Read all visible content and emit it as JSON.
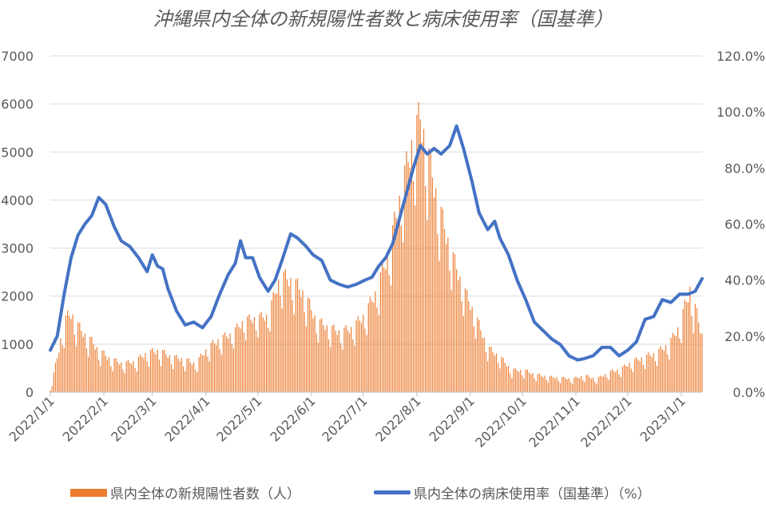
{
  "chart_data": {
    "type": "bar+line",
    "title": "沖縄県内全体の新規陽性者数と病床使用率（国基準）",
    "x_tick_labels": [
      "2022/1/1",
      "2022/2/1",
      "2022/3/1",
      "2022/4/1",
      "2022/5/1",
      "2022/6/1",
      "2022/7/1",
      "2022/8/1",
      "2022/9/1",
      "2022/10/1",
      "2022/11/1",
      "2022/12/1",
      "2023/1/1"
    ],
    "x_range": [
      "2022-01-01",
      "2023-01-13"
    ],
    "y_left": {
      "ticks": [
        "0",
        "1000",
        "2000",
        "3000",
        "4000",
        "5000",
        "6000",
        "7000"
      ],
      "range": [
        0,
        7000
      ]
    },
    "y_right": {
      "ticks": [
        "0.0%",
        "20.0%",
        "40.0%",
        "60.0%",
        "80.0%",
        "100.0%",
        "120.0%"
      ],
      "range": [
        0,
        120
      ]
    },
    "grid": "horizontal",
    "legend_position": "bottom",
    "colors": {
      "bars": "#ED7D31",
      "line": "#4472C4",
      "grid": "#D9D9D9",
      "text": "#595959"
    },
    "series": [
      {
        "name": "県内全体の新規陽性者数（人）",
        "type": "bar",
        "axis": "left",
        "weekly_envelope": {
          "dates": [
            "2022-01-01",
            "2022-01-05",
            "2022-01-09",
            "2022-01-13",
            "2022-01-17",
            "2022-01-21",
            "2022-01-25",
            "2022-01-29",
            "2022-02-05",
            "2022-02-12",
            "2022-02-19",
            "2022-02-26",
            "2022-03-05",
            "2022-03-12",
            "2022-03-19",
            "2022-03-26",
            "2022-04-02",
            "2022-04-09",
            "2022-04-16",
            "2022-04-23",
            "2022-04-30",
            "2022-05-07",
            "2022-05-14",
            "2022-05-21",
            "2022-05-28",
            "2022-06-04",
            "2022-06-11",
            "2022-06-18",
            "2022-06-25",
            "2022-07-02",
            "2022-07-09",
            "2022-07-16",
            "2022-07-23",
            "2022-07-30",
            "2022-08-03",
            "2022-08-07",
            "2022-08-14",
            "2022-08-21",
            "2022-08-28",
            "2022-09-04",
            "2022-09-11",
            "2022-09-18",
            "2022-09-25",
            "2022-10-02",
            "2022-10-09",
            "2022-10-16",
            "2022-10-23",
            "2022-10-30",
            "2022-11-06",
            "2022-11-13",
            "2022-11-20",
            "2022-11-27",
            "2022-12-04",
            "2022-12-11",
            "2022-12-18",
            "2022-12-25",
            "2022-12-31",
            "2023-01-06",
            "2023-01-13"
          ],
          "peak": [
            50,
            800,
            1600,
            1800,
            1500,
            1300,
            1150,
            950,
            750,
            650,
            700,
            900,
            950,
            800,
            750,
            650,
            1000,
            1200,
            1300,
            1600,
            1650,
            1700,
            2600,
            2500,
            2200,
            1600,
            1450,
            1350,
            1450,
            1750,
            2300,
            3200,
            4500,
            5700,
            6150,
            5400,
            4100,
            3100,
            2300,
            1700,
            1000,
            800,
            500,
            500,
            400,
            350,
            330,
            300,
            380,
            300,
            450,
            530,
            700,
            800,
            900,
            1100,
            1500,
            2350,
            1300
          ],
          "trough": [
            20,
            200,
            550,
            700,
            600,
            500,
            450,
            350,
            280,
            250,
            260,
            330,
            350,
            320,
            280,
            240,
            420,
            520,
            650,
            800,
            850,
            900,
            1300,
            1200,
            1000,
            750,
            680,
            620,
            670,
            800,
            1100,
            1500,
            2200,
            2800,
            3000,
            2600,
            2000,
            1600,
            1200,
            800,
            450,
            330,
            180,
            170,
            140,
            120,
            110,
            100,
            120,
            100,
            160,
            200,
            270,
            310,
            360,
            450,
            650,
            900,
            500
          ]
        }
      },
      {
        "name": "県内全体の病床使用率（国基準）（%）",
        "type": "line",
        "axis": "right",
        "points": [
          [
            "2022-01-01",
            15
          ],
          [
            "2022-01-05",
            20
          ],
          [
            "2022-01-09",
            35
          ],
          [
            "2022-01-13",
            48
          ],
          [
            "2022-01-17",
            56
          ],
          [
            "2022-01-21",
            60
          ],
          [
            "2022-01-25",
            63
          ],
          [
            "2022-01-29",
            69.5
          ],
          [
            "2022-02-02",
            67
          ],
          [
            "2022-02-07",
            59
          ],
          [
            "2022-02-11",
            54
          ],
          [
            "2022-02-16",
            52
          ],
          [
            "2022-02-21",
            48
          ],
          [
            "2022-02-26",
            43
          ],
          [
            "2022-03-01",
            49
          ],
          [
            "2022-03-04",
            45
          ],
          [
            "2022-03-07",
            44
          ],
          [
            "2022-03-10",
            37
          ],
          [
            "2022-03-15",
            29
          ],
          [
            "2022-03-20",
            24
          ],
          [
            "2022-03-25",
            25
          ],
          [
            "2022-03-30",
            23
          ],
          [
            "2022-04-04",
            27
          ],
          [
            "2022-04-09",
            35
          ],
          [
            "2022-04-14",
            42
          ],
          [
            "2022-04-18",
            46
          ],
          [
            "2022-04-21",
            54
          ],
          [
            "2022-04-24",
            48
          ],
          [
            "2022-04-28",
            48
          ],
          [
            "2022-05-02",
            41
          ],
          [
            "2022-05-07",
            36
          ],
          [
            "2022-05-11",
            40
          ],
          [
            "2022-05-15",
            47
          ],
          [
            "2022-05-20",
            56.5
          ],
          [
            "2022-05-24",
            55
          ],
          [
            "2022-05-29",
            52
          ],
          [
            "2022-06-02",
            49
          ],
          [
            "2022-06-07",
            47
          ],
          [
            "2022-06-12",
            40
          ],
          [
            "2022-06-17",
            38.5
          ],
          [
            "2022-06-22",
            37.5
          ],
          [
            "2022-06-27",
            38.5
          ],
          [
            "2022-07-02",
            40
          ],
          [
            "2022-07-06",
            41
          ],
          [
            "2022-07-10",
            45
          ],
          [
            "2022-07-14",
            48
          ],
          [
            "2022-07-18",
            53
          ],
          [
            "2022-07-22",
            62
          ],
          [
            "2022-07-26",
            71
          ],
          [
            "2022-07-30",
            80
          ],
          [
            "2022-08-03",
            88
          ],
          [
            "2022-08-07",
            85
          ],
          [
            "2022-08-11",
            87
          ],
          [
            "2022-08-15",
            85
          ],
          [
            "2022-08-20",
            88
          ],
          [
            "2022-08-24",
            95
          ],
          [
            "2022-08-28",
            87
          ],
          [
            "2022-09-02",
            75
          ],
          [
            "2022-09-06",
            64
          ],
          [
            "2022-09-11",
            58
          ],
          [
            "2022-09-15",
            61
          ],
          [
            "2022-09-18",
            55
          ],
          [
            "2022-09-23",
            49
          ],
          [
            "2022-09-28",
            40
          ],
          [
            "2022-10-03",
            33
          ],
          [
            "2022-10-08",
            25
          ],
          [
            "2022-10-13",
            22
          ],
          [
            "2022-10-18",
            19
          ],
          [
            "2022-10-23",
            17
          ],
          [
            "2022-10-28",
            13
          ],
          [
            "2022-11-02",
            11.5
          ],
          [
            "2022-11-06",
            12
          ],
          [
            "2022-11-11",
            13
          ],
          [
            "2022-11-16",
            16
          ],
          [
            "2022-11-21",
            16
          ],
          [
            "2022-11-26",
            13
          ],
          [
            "2022-12-01",
            15
          ],
          [
            "2022-12-06",
            18
          ],
          [
            "2022-12-11",
            26
          ],
          [
            "2022-12-16",
            27
          ],
          [
            "2022-12-21",
            33
          ],
          [
            "2022-12-26",
            32
          ],
          [
            "2022-12-31",
            35
          ],
          [
            "2023-01-05",
            35
          ],
          [
            "2023-01-09",
            36
          ],
          [
            "2023-01-13",
            40.5
          ]
        ]
      }
    ]
  }
}
